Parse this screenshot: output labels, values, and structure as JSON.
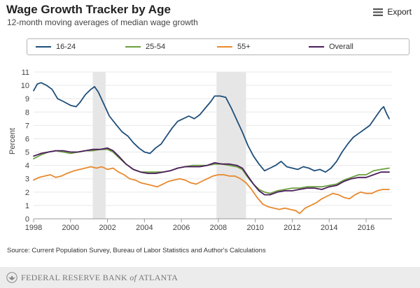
{
  "header": {
    "title": "Wage Growth Tracker by Age",
    "subtitle": "12-month moving averages of median wage growth",
    "export_label": "Export",
    "export_icon": "hamburger-menu-icon"
  },
  "footer": {
    "source": "Source: Current Population Survey, Bureau of Labor Statistics and Author's Calculations",
    "org_name_prefix": "FEDERAL RESERVE BANK ",
    "org_name_of": "of",
    "org_name_suffix": " ATLANTA",
    "logo_icon": "federal-reserve-eagle-icon"
  },
  "colors": {
    "series_16_24": "#1f4e79",
    "series_25_54": "#6b9e3f",
    "series_55_plus": "#e8892d",
    "series_overall": "#4b1c5c",
    "recession_band": "#e6e6e6",
    "gridline": "#e8e8e8"
  },
  "chart_data": {
    "type": "line",
    "title": "Wage Growth Tracker by Age",
    "subtitle": "12-month moving averages of median wage growth",
    "xlabel": "",
    "ylabel": "Percent",
    "xlim": [
      1998,
      2017.4
    ],
    "ylim": [
      0,
      11
    ],
    "x_ticks": [
      "1998",
      "2000",
      "2002",
      "2004",
      "2006",
      "2008",
      "2010",
      "2012",
      "2014",
      "2016"
    ],
    "y_ticks": [
      "0",
      "1",
      "2",
      "3",
      "4",
      "5",
      "6",
      "7",
      "8",
      "9",
      "10",
      "11"
    ],
    "grid": "horizontal",
    "legend_position": "top",
    "recession_periods": [
      [
        2001.2,
        2001.9
      ],
      [
        2007.9,
        2009.5
      ]
    ],
    "series": [
      {
        "name": "16-24",
        "color": "#1f4e79",
        "points": [
          [
            1998.0,
            9.6
          ],
          [
            1998.2,
            10.1
          ],
          [
            1998.4,
            10.2
          ],
          [
            1998.7,
            10.0
          ],
          [
            1999.0,
            9.7
          ],
          [
            1999.3,
            9.0
          ],
          [
            1999.6,
            8.8
          ],
          [
            2000.0,
            8.5
          ],
          [
            2000.3,
            8.4
          ],
          [
            2000.5,
            8.7
          ],
          [
            2000.8,
            9.3
          ],
          [
            2001.1,
            9.7
          ],
          [
            2001.3,
            9.9
          ],
          [
            2001.5,
            9.5
          ],
          [
            2001.8,
            8.6
          ],
          [
            2002.1,
            7.7
          ],
          [
            2002.5,
            7.0
          ],
          [
            2002.8,
            6.5
          ],
          [
            2003.1,
            6.2
          ],
          [
            2003.4,
            5.7
          ],
          [
            2003.7,
            5.3
          ],
          [
            2004.0,
            5.0
          ],
          [
            2004.3,
            4.9
          ],
          [
            2004.6,
            5.3
          ],
          [
            2004.9,
            5.6
          ],
          [
            2005.2,
            6.2
          ],
          [
            2005.5,
            6.8
          ],
          [
            2005.8,
            7.3
          ],
          [
            2006.1,
            7.5
          ],
          [
            2006.4,
            7.7
          ],
          [
            2006.7,
            7.5
          ],
          [
            2007.0,
            7.8
          ],
          [
            2007.3,
            8.3
          ],
          [
            2007.6,
            8.8
          ],
          [
            2007.8,
            9.2
          ],
          [
            2008.1,
            9.2
          ],
          [
            2008.4,
            9.1
          ],
          [
            2008.7,
            8.3
          ],
          [
            2009.0,
            7.4
          ],
          [
            2009.3,
            6.5
          ],
          [
            2009.6,
            5.5
          ],
          [
            2009.9,
            4.7
          ],
          [
            2010.2,
            4.1
          ],
          [
            2010.5,
            3.6
          ],
          [
            2010.8,
            3.8
          ],
          [
            2011.1,
            4.0
          ],
          [
            2011.4,
            4.3
          ],
          [
            2011.7,
            3.9
          ],
          [
            2012.0,
            3.8
          ],
          [
            2012.3,
            3.7
          ],
          [
            2012.6,
            3.9
          ],
          [
            2012.9,
            3.8
          ],
          [
            2013.2,
            3.6
          ],
          [
            2013.5,
            3.7
          ],
          [
            2013.8,
            3.5
          ],
          [
            2014.1,
            3.8
          ],
          [
            2014.4,
            4.3
          ],
          [
            2014.7,
            5.0
          ],
          [
            2015.0,
            5.6
          ],
          [
            2015.3,
            6.1
          ],
          [
            2015.6,
            6.4
          ],
          [
            2015.9,
            6.7
          ],
          [
            2016.2,
            7.0
          ],
          [
            2016.5,
            7.6
          ],
          [
            2016.8,
            8.2
          ],
          [
            2016.95,
            8.4
          ],
          [
            2017.1,
            7.9
          ],
          [
            2017.25,
            7.5
          ]
        ]
      },
      {
        "name": "25-54",
        "color": "#6b9e3f",
        "points": [
          [
            1998.0,
            4.5
          ],
          [
            1998.4,
            4.8
          ],
          [
            1998.8,
            5.0
          ],
          [
            1999.2,
            5.1
          ],
          [
            1999.6,
            5.0
          ],
          [
            2000.0,
            4.9
          ],
          [
            2000.4,
            5.0
          ],
          [
            2000.8,
            5.1
          ],
          [
            2001.2,
            5.1
          ],
          [
            2001.6,
            5.2
          ],
          [
            2002.0,
            5.2
          ],
          [
            2002.3,
            5.0
          ],
          [
            2002.6,
            4.6
          ],
          [
            2003.0,
            4.1
          ],
          [
            2003.4,
            3.7
          ],
          [
            2003.8,
            3.5
          ],
          [
            2004.2,
            3.5
          ],
          [
            2004.6,
            3.5
          ],
          [
            2005.0,
            3.5
          ],
          [
            2005.4,
            3.6
          ],
          [
            2005.8,
            3.8
          ],
          [
            2006.2,
            3.9
          ],
          [
            2006.6,
            4.0
          ],
          [
            2007.0,
            4.0
          ],
          [
            2007.4,
            4.0
          ],
          [
            2007.8,
            4.1
          ],
          [
            2008.2,
            4.1
          ],
          [
            2008.6,
            4.0
          ],
          [
            2009.0,
            3.9
          ],
          [
            2009.3,
            3.7
          ],
          [
            2009.6,
            3.1
          ],
          [
            2009.9,
            2.6
          ],
          [
            2010.2,
            2.2
          ],
          [
            2010.5,
            2.0
          ],
          [
            2010.8,
            1.9
          ],
          [
            2011.2,
            2.1
          ],
          [
            2011.6,
            2.2
          ],
          [
            2012.0,
            2.3
          ],
          [
            2012.4,
            2.3
          ],
          [
            2012.8,
            2.4
          ],
          [
            2013.2,
            2.4
          ],
          [
            2013.6,
            2.4
          ],
          [
            2014.0,
            2.5
          ],
          [
            2014.4,
            2.6
          ],
          [
            2014.8,
            2.9
          ],
          [
            2015.2,
            3.1
          ],
          [
            2015.6,
            3.3
          ],
          [
            2016.0,
            3.3
          ],
          [
            2016.4,
            3.6
          ],
          [
            2016.8,
            3.7
          ],
          [
            2017.25,
            3.8
          ]
        ]
      },
      {
        "name": "55+",
        "color": "#e8892d",
        "points": [
          [
            1998.0,
            2.9
          ],
          [
            1998.3,
            3.1
          ],
          [
            1998.6,
            3.2
          ],
          [
            1998.9,
            3.3
          ],
          [
            1999.2,
            3.1
          ],
          [
            1999.5,
            3.2
          ],
          [
            1999.8,
            3.4
          ],
          [
            2000.2,
            3.6
          ],
          [
            2000.5,
            3.7
          ],
          [
            2000.8,
            3.8
          ],
          [
            2001.1,
            3.9
          ],
          [
            2001.4,
            3.8
          ],
          [
            2001.7,
            3.9
          ],
          [
            2002.0,
            3.7
          ],
          [
            2002.3,
            3.8
          ],
          [
            2002.6,
            3.5
          ],
          [
            2002.9,
            3.3
          ],
          [
            2003.2,
            3.0
          ],
          [
            2003.5,
            2.9
          ],
          [
            2003.8,
            2.7
          ],
          [
            2004.1,
            2.6
          ],
          [
            2004.4,
            2.5
          ],
          [
            2004.7,
            2.4
          ],
          [
            2005.0,
            2.6
          ],
          [
            2005.3,
            2.8
          ],
          [
            2005.6,
            2.9
          ],
          [
            2005.9,
            3.0
          ],
          [
            2006.2,
            2.9
          ],
          [
            2006.5,
            2.7
          ],
          [
            2006.8,
            2.6
          ],
          [
            2007.1,
            2.8
          ],
          [
            2007.4,
            3.0
          ],
          [
            2007.7,
            3.2
          ],
          [
            2008.0,
            3.3
          ],
          [
            2008.3,
            3.3
          ],
          [
            2008.6,
            3.2
          ],
          [
            2008.9,
            3.2
          ],
          [
            2009.2,
            3.0
          ],
          [
            2009.5,
            2.7
          ],
          [
            2009.8,
            2.2
          ],
          [
            2010.1,
            1.6
          ],
          [
            2010.4,
            1.1
          ],
          [
            2010.7,
            0.9
          ],
          [
            2011.0,
            0.8
          ],
          [
            2011.3,
            0.7
          ],
          [
            2011.6,
            0.8
          ],
          [
            2011.9,
            0.7
          ],
          [
            2012.2,
            0.6
          ],
          [
            2012.4,
            0.4
          ],
          [
            2012.7,
            0.8
          ],
          [
            2013.0,
            1.0
          ],
          [
            2013.3,
            1.2
          ],
          [
            2013.6,
            1.5
          ],
          [
            2013.9,
            1.7
          ],
          [
            2014.2,
            1.9
          ],
          [
            2014.5,
            1.8
          ],
          [
            2014.8,
            1.6
          ],
          [
            2015.1,
            1.5
          ],
          [
            2015.4,
            1.8
          ],
          [
            2015.7,
            2.0
          ],
          [
            2016.0,
            1.9
          ],
          [
            2016.3,
            1.9
          ],
          [
            2016.6,
            2.1
          ],
          [
            2016.9,
            2.2
          ],
          [
            2017.25,
            2.2
          ]
        ]
      },
      {
        "name": "Overall",
        "color": "#4b1c5c",
        "points": [
          [
            1998.0,
            4.7
          ],
          [
            1998.4,
            4.9
          ],
          [
            1998.8,
            5.0
          ],
          [
            1999.2,
            5.1
          ],
          [
            1999.6,
            5.1
          ],
          [
            2000.0,
            5.0
          ],
          [
            2000.4,
            5.0
          ],
          [
            2000.8,
            5.1
          ],
          [
            2001.2,
            5.2
          ],
          [
            2001.6,
            5.2
          ],
          [
            2002.0,
            5.3
          ],
          [
            2002.3,
            5.1
          ],
          [
            2002.6,
            4.7
          ],
          [
            2003.0,
            4.1
          ],
          [
            2003.4,
            3.7
          ],
          [
            2003.8,
            3.5
          ],
          [
            2004.2,
            3.4
          ],
          [
            2004.6,
            3.4
          ],
          [
            2005.0,
            3.5
          ],
          [
            2005.4,
            3.6
          ],
          [
            2005.8,
            3.8
          ],
          [
            2006.2,
            3.9
          ],
          [
            2006.6,
            3.9
          ],
          [
            2007.0,
            3.9
          ],
          [
            2007.4,
            4.0
          ],
          [
            2007.8,
            4.2
          ],
          [
            2008.2,
            4.1
          ],
          [
            2008.6,
            4.1
          ],
          [
            2009.0,
            4.0
          ],
          [
            2009.3,
            3.8
          ],
          [
            2009.6,
            3.2
          ],
          [
            2009.9,
            2.6
          ],
          [
            2010.2,
            2.1
          ],
          [
            2010.5,
            1.8
          ],
          [
            2010.8,
            1.8
          ],
          [
            2011.2,
            2.0
          ],
          [
            2011.6,
            2.1
          ],
          [
            2012.0,
            2.1
          ],
          [
            2012.4,
            2.2
          ],
          [
            2012.8,
            2.3
          ],
          [
            2013.2,
            2.3
          ],
          [
            2013.6,
            2.2
          ],
          [
            2014.0,
            2.4
          ],
          [
            2014.4,
            2.5
          ],
          [
            2014.8,
            2.8
          ],
          [
            2015.2,
            3.0
          ],
          [
            2015.6,
            3.1
          ],
          [
            2016.0,
            3.1
          ],
          [
            2016.4,
            3.3
          ],
          [
            2016.8,
            3.5
          ],
          [
            2017.25,
            3.5
          ]
        ]
      }
    ]
  }
}
